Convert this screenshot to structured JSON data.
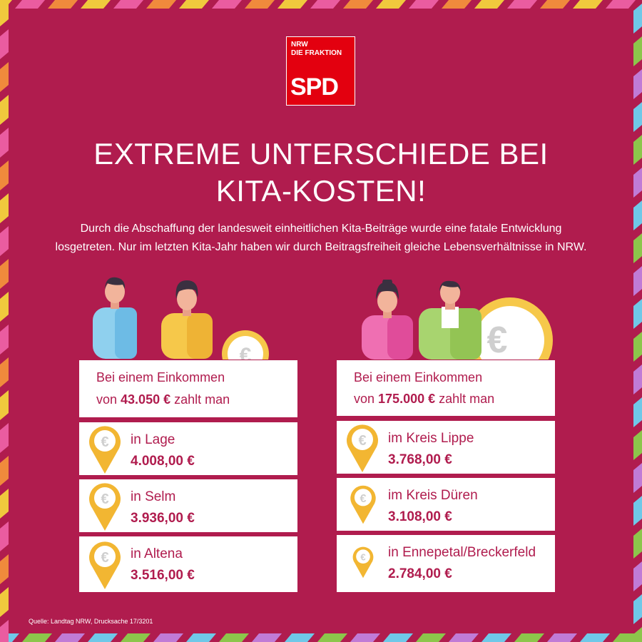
{
  "logo": {
    "line1": "NRW",
    "line2": "DIE FRAKTION",
    "name": "SPD"
  },
  "title": {
    "line1": "EXTREME UNTERSCHIEDE BEI",
    "line2": "KITA-KOSTEN!"
  },
  "intro": {
    "line1": "Durch die Abschaffung der landesweit einheitlichen Kita-Beiträge wurde eine fatale Entwicklung",
    "line2": "losgetreten. Nur im letzten Kita-Jahr haben wir durch Beitragsfreiheit gleiche Lebensverhältnisse in NRW."
  },
  "left": {
    "header": {
      "line1": "Bei einem Einkommen",
      "prefix": "von ",
      "income": "43.050 €",
      "suffix": " zahlt man"
    },
    "items": [
      {
        "place": "in Lage",
        "amount": "4.008,00 €"
      },
      {
        "place": "in Selm",
        "amount": "3.936,00 €"
      },
      {
        "place": "in Altena",
        "amount": "3.516,00 €"
      }
    ]
  },
  "right": {
    "header": {
      "line1": "Bei einem Einkommen",
      "prefix": "von ",
      "income": "175.000 €",
      "suffix": " zahlt man"
    },
    "items": [
      {
        "place": "im Kreis Lippe",
        "amount": "3.768,00 €"
      },
      {
        "place": "im Kreis Düren",
        "amount": "3.108,00 €"
      },
      {
        "place": "in Ennepetal/Breckerfeld",
        "amount": "2.784,00 €"
      }
    ]
  },
  "source": "Quelle: Landtag NRW, Drucksache 17/3201",
  "colors": {
    "background": "#b01c4e",
    "spd_red": "#e3000f",
    "card": "#ffffff",
    "pin_gold": "#f2b632",
    "stripe_palette": [
      "#f0c93d",
      "#6fc8e8",
      "#ea5ca0",
      "#8cc64b",
      "#f08a3c",
      "#c07bd6"
    ]
  },
  "icons": [
    "euro-pin-icon",
    "euro-coin-icon",
    "person-icon"
  ]
}
